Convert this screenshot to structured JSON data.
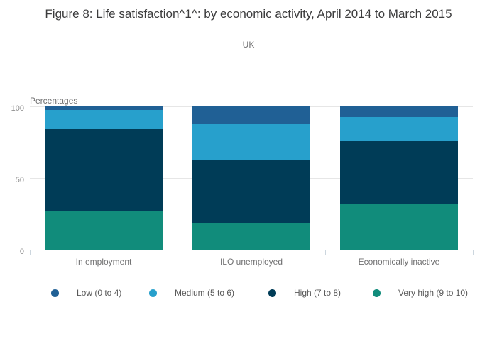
{
  "header": {
    "title": "Figure 8: Life satisfaction^1^: by economic activity, April 2014 to March 2015",
    "subtitle": "UK"
  },
  "axes": {
    "y_unit_label": "Percentages",
    "y_tick_labels": [
      "100",
      "50",
      "0"
    ]
  },
  "chart_data": {
    "type": "bar",
    "stacked": true,
    "title": "Figure 8: Life satisfaction^1^: by economic activity, April 2014 to March 2015",
    "subtitle": "UK",
    "xlabel": "",
    "ylabel": "Percentages",
    "ylim": [
      0,
      100
    ],
    "y_ticks": [
      0,
      50,
      100
    ],
    "grid": "horizontal",
    "legend_position": "bottom",
    "categories": [
      "In employment",
      "ILO unemployed",
      "Economically inactive"
    ],
    "series": [
      {
        "name": "Low (0 to 4)",
        "color": "#206095",
        "values": [
          2.6,
          12.6,
          7.2
        ]
      },
      {
        "name": "Medium (5 to 6)",
        "color": "#27A0CC",
        "values": [
          13.4,
          24.8,
          16.9
        ]
      },
      {
        "name": "High (7 to 8)",
        "color": "#003C57",
        "values": [
          57.1,
          43.9,
          43.9
        ]
      },
      {
        "name": "Very high (9 to 10)",
        "color": "#118C7B",
        "values": [
          26.9,
          18.7,
          32.0
        ]
      }
    ],
    "stack_order_bottom_to_top": [
      "Very high (9 to 10)",
      "High (7 to 8)",
      "Medium (5 to 6)",
      "Low (0 to 4)"
    ]
  },
  "legend": {
    "items": [
      {
        "label": "Low (0 to 4)",
        "color": "#206095"
      },
      {
        "label": "Medium (5 to 6)",
        "color": "#27A0CC"
      },
      {
        "label": "High (7 to 8)",
        "color": "#003C57"
      },
      {
        "label": "Very high (9 to 10)",
        "color": "#118C7B"
      }
    ]
  }
}
